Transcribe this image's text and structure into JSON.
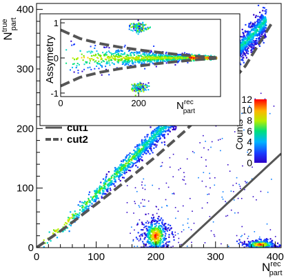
{
  "chart_data": [
    {
      "type": "heatmap",
      "id": "main",
      "title": "",
      "xlabel": {
        "main": "N",
        "sup": "rec",
        "sub": "part"
      },
      "ylabel": {
        "main": "N",
        "sup": "true",
        "sub": "part"
      },
      "xlim": [
        0,
        410
      ],
      "ylim": [
        0,
        410
      ],
      "xticks": [
        0,
        100,
        200,
        300,
        400
      ],
      "yticks": [
        0,
        100,
        200,
        300,
        400
      ],
      "xtick_labels": [
        "0",
        "100",
        "200",
        "300",
        "400"
      ],
      "ytick_labels": [
        "0",
        "100",
        "200",
        "300",
        "400"
      ],
      "grid": false,
      "legend": {
        "position": "upper-left",
        "entries": [
          {
            "name": "cut1",
            "style": "solid"
          },
          {
            "name": "cut2",
            "style": "dashed"
          }
        ]
      },
      "colorbar": {
        "label": "Counts",
        "range": [
          0,
          12
        ],
        "tick_labels": [
          "0",
          "2",
          "4",
          "6",
          "8",
          "10",
          "12"
        ]
      },
      "clusters": [
        {
          "x": 200,
          "y": 20,
          "peak_counts": 12
        },
        {
          "x": 375,
          "y": 5,
          "peak_counts": 12
        }
      ],
      "density_band": {
        "x": [
          0,
          50,
          100,
          150,
          200,
          250,
          300,
          350,
          385
        ],
        "y": [
          0,
          42,
          90,
          140,
          190,
          242,
          295,
          345,
          382
        ]
      },
      "series": [
        {
          "name": "cut1",
          "style": "solid",
          "x": [
            240,
            410
          ],
          "y": [
            0,
            158
          ]
        },
        {
          "name": "cut2",
          "style": "dashed",
          "x": [
            0,
            50,
            100,
            150,
            200,
            250,
            300,
            350,
            393
          ],
          "y": [
            0,
            35,
            73,
            112,
            153,
            197,
            248,
            305,
            375
          ]
        }
      ]
    },
    {
      "type": "scatter",
      "id": "inset",
      "title": "",
      "xlabel": {
        "main": "N",
        "sup": "rec",
        "sub": "part"
      },
      "ylabel": {
        "main": "Assymetry"
      },
      "xlim": [
        0,
        410
      ],
      "ylim": [
        -1.1,
        1.1
      ],
      "xticks": [
        0,
        200
      ],
      "yticks": [
        -1,
        0,
        1
      ],
      "xtick_labels": [
        "0",
        "200"
      ],
      "ytick_labels": [
        "-1",
        "0",
        "1"
      ],
      "clusters": [
        {
          "x": 200,
          "y": 0.88
        },
        {
          "x": 200,
          "y": -0.85
        }
      ],
      "series": [
        {
          "name": "",
          "style": "dashed",
          "x": [
            0,
            50,
            100,
            150,
            200,
            250,
            300,
            350,
            400
          ],
          "y": [
            0.8,
            0.55,
            0.41,
            0.31,
            0.23,
            0.16,
            0.1,
            0.05,
            0.01
          ]
        },
        {
          "name": "",
          "style": "dashed",
          "x": [
            0,
            50,
            100,
            150,
            200,
            250,
            300,
            350,
            400
          ],
          "y": [
            -0.8,
            -0.55,
            -0.41,
            -0.31,
            -0.23,
            -0.16,
            -0.1,
            -0.05,
            -0.01
          ]
        }
      ]
    }
  ]
}
